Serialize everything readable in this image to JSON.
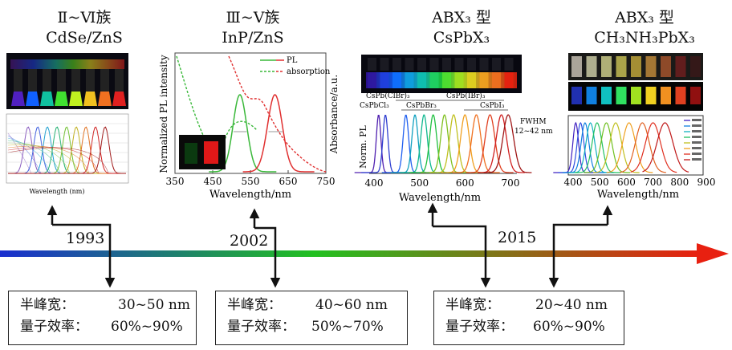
{
  "columns": [
    {
      "title_line1": "Ⅱ~Ⅵ族",
      "title_line2": "CdSe/ZnS"
    },
    {
      "title_line1": "Ⅲ~Ⅴ族",
      "title_line2": "InP/ZnS"
    },
    {
      "title_line1": "ABX₃ 型",
      "title_line2": "CsPbX₃"
    },
    {
      "title_line1": "ABX₃ 型",
      "title_line2": "CH₃NH₃PbX₃"
    }
  ],
  "years": [
    "1993",
    "2002",
    "2015"
  ],
  "boxes": [
    {
      "fwhm_label": "半峰宽：",
      "fwhm_value": "30~50 nm",
      "qy_label": "量子效率：",
      "qy_value": "60%~90%"
    },
    {
      "fwhm_label": "半峰宽：",
      "fwhm_value": "40~60 nm",
      "qy_label": "量子效率：",
      "qy_value": "50%~70%"
    },
    {
      "fwhm_label": "半峰宽：",
      "fwhm_value": "20~40 nm",
      "qy_label": "量子效率：",
      "qy_value": "60%~90%"
    }
  ],
  "panel1": {
    "xlabel": "Wavelength (nm)"
  },
  "panel2": {
    "ylabel_left": "Normalized PL intensity",
    "ylabel_right": "Absorbance/a.u.",
    "xlabel": "Wavelength/nm",
    "xticks": [
      "350",
      "450",
      "550",
      "650",
      "750"
    ],
    "legend": [
      "PL",
      "absorption"
    ]
  },
  "panel3": {
    "ylabel": "Norm. PL",
    "xlabel": "Wavelength/nm",
    "xticks": [
      "400",
      "500",
      "600",
      "700"
    ],
    "labels": [
      "CsPb(ClBr)₃",
      "CsPb(IBr)₃",
      "CsPbCl₃",
      "CsPbBr₃",
      "CsPbI₃"
    ],
    "fwhm_line1": "FWHM",
    "fwhm_line2": "12~42 nm"
  },
  "panel4": {
    "xlabel": "Wavelength/nm",
    "xticks": [
      "400",
      "500",
      "600",
      "700",
      "800",
      "900"
    ]
  },
  "colors": {
    "arrow_blue": "#1a2fd0",
    "arrow_green": "#22c020",
    "arrow_red": "#e82010",
    "pl_green": "#3ab83a",
    "pl_red": "#e03030"
  }
}
